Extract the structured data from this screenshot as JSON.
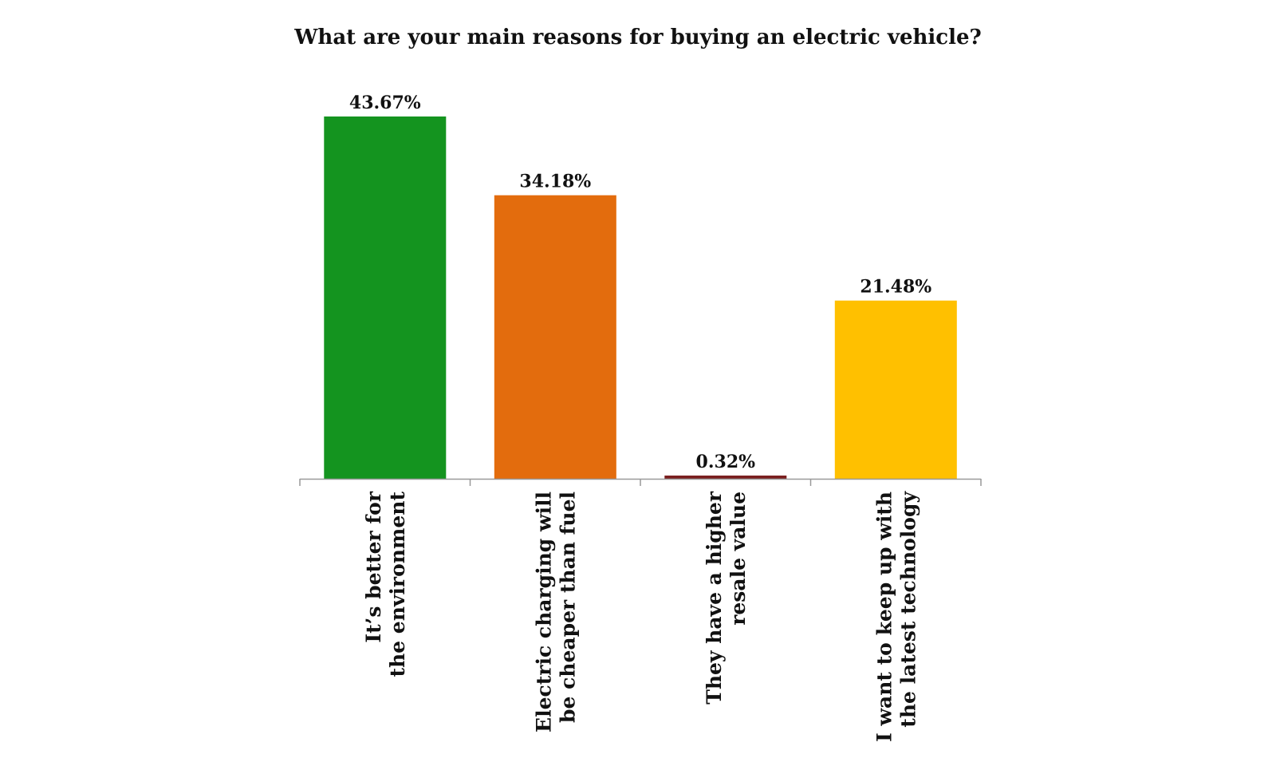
{
  "chart_data": {
    "type": "bar",
    "title": "What are your main reasons for buying an electric vehicle?",
    "xlabel": "",
    "ylabel": "",
    "ylim": [
      0,
      45
    ],
    "grid": false,
    "legend": "none",
    "categories": [
      "It’s better for the environment",
      "Electric charging will be cheaper than fuel",
      "They have a higher resale value",
      "I want to keep up with the latest technology"
    ],
    "category_lines": [
      [
        "It’s better for",
        "the environment"
      ],
      [
        "Electric charging will",
        "be cheaper than fuel"
      ],
      [
        "They have a higher",
        "resale value"
      ],
      [
        "I want to keep up with",
        "the latest technology"
      ]
    ],
    "values": [
      43.67,
      34.18,
      0.32,
      21.48
    ],
    "value_labels": [
      "43.67%",
      "34.18%",
      "0.32%",
      "21.48%"
    ],
    "colors": [
      "#14941f",
      "#e36c0d",
      "#7b1f1f",
      "#ffc000"
    ],
    "axis_color": "#999999"
  }
}
